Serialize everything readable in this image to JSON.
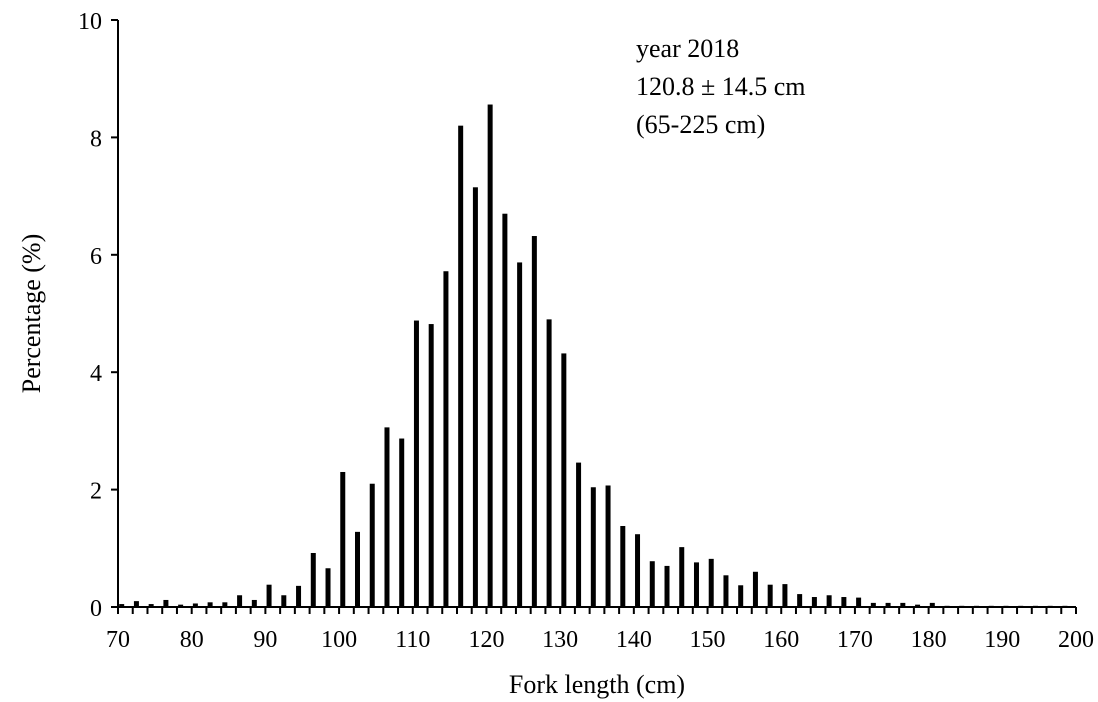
{
  "chart_data": {
    "type": "bar",
    "xlabel": "Fork length (cm)",
    "ylabel": "Percentage (%)",
    "annotations": [
      "year 2018",
      "120.8 ± 14.5 cm",
      "(65-225 cm)"
    ],
    "xlim": [
      70,
      200
    ],
    "ylim": [
      0,
      10
    ],
    "x_ticks": [
      "70",
      "80",
      "90",
      "100",
      "110",
      "120",
      "130",
      "140",
      "150",
      "160",
      "170",
      "180",
      "190",
      "200"
    ],
    "y_ticks": [
      "0",
      "2",
      "4",
      "6",
      "8",
      "10"
    ],
    "grid": false,
    "bar_color": "#000000",
    "x": [
      70,
      72,
      74,
      76,
      78,
      80,
      82,
      84,
      86,
      88,
      90,
      92,
      94,
      96,
      98,
      100,
      102,
      104,
      106,
      108,
      110,
      112,
      114,
      116,
      118,
      120,
      122,
      124,
      126,
      128,
      130,
      132,
      134,
      136,
      138,
      140,
      142,
      144,
      146,
      148,
      150,
      152,
      154,
      156,
      158,
      160,
      162,
      164,
      166,
      168,
      170,
      172,
      174,
      176,
      178,
      180,
      182,
      184,
      186,
      188,
      190,
      192,
      194,
      196,
      198
    ],
    "values": [
      0.05,
      0.1,
      0.05,
      0.12,
      0.04,
      0.06,
      0.08,
      0.08,
      0.2,
      0.12,
      0.38,
      0.2,
      0.36,
      0.92,
      0.66,
      2.3,
      1.28,
      2.1,
      3.06,
      2.87,
      4.88,
      4.82,
      5.72,
      8.2,
      7.15,
      8.56,
      6.7,
      5.87,
      6.32,
      4.9,
      4.32,
      2.46,
      2.04,
      2.07,
      1.38,
      1.24,
      0.78,
      0.7,
      1.02,
      0.76,
      0.82,
      0.54,
      0.37,
      0.6,
      0.38,
      0.39,
      0.22,
      0.17,
      0.2,
      0.17,
      0.16,
      0.07,
      0.07,
      0.07,
      0.04,
      0.07,
      0.02,
      0.02,
      0.02,
      0.02,
      0.02,
      0.02,
      0.02,
      0.02,
      0.02
    ]
  }
}
